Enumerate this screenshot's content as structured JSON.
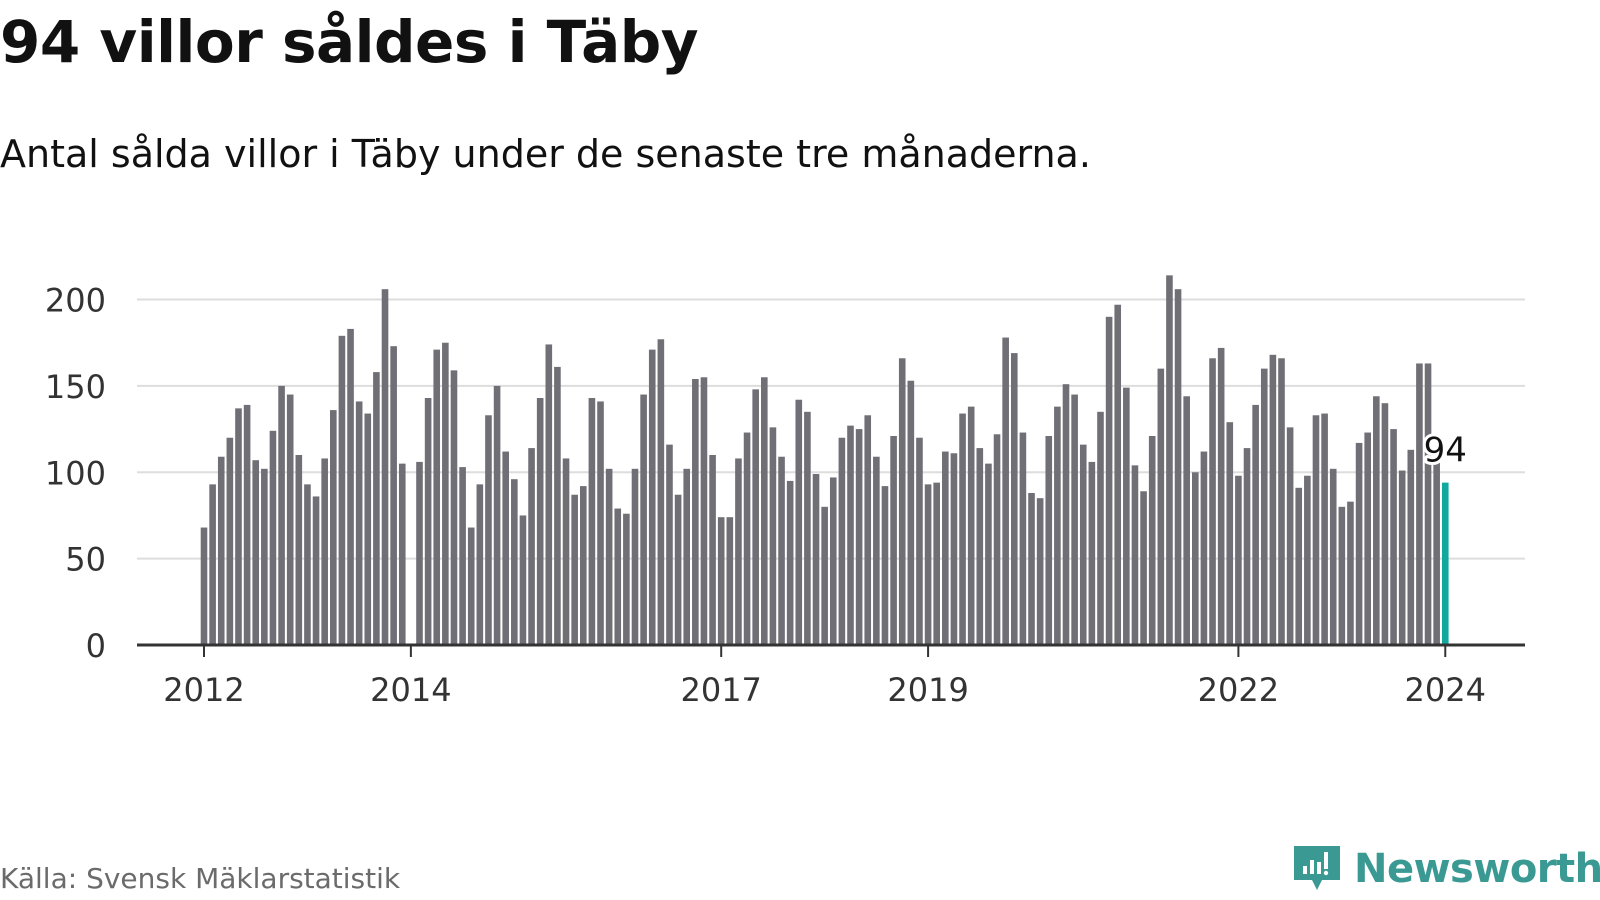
{
  "header": {
    "title": "94 villor såldes i Täby",
    "subtitle": "Antal sålda villor i Täby under de senaste tre månaderna."
  },
  "footer": {
    "source": "Källa: Svensk Mäklarstatistik",
    "brand": "Newsworthy"
  },
  "colors": {
    "bar": "#6f6f75",
    "highlight": "#13a89e",
    "grid": "#dddddd",
    "axis": "#333333",
    "brand": "#3a9a93"
  },
  "chart_data": {
    "type": "bar",
    "title": "94 villor såldes i Täby",
    "xlabel": "",
    "ylabel": "",
    "ylim": [
      0,
      220
    ],
    "yticks": [
      0,
      50,
      100,
      150,
      200
    ],
    "start": "2012-01",
    "categories_note": "Monthly, January 2012 to January 2024",
    "xtick_labels": [
      {
        "label": "2012",
        "index": 0
      },
      {
        "label": "2014",
        "index": 24
      },
      {
        "label": "2017",
        "index": 60
      },
      {
        "label": "2019",
        "index": 84
      },
      {
        "label": "2022",
        "index": 120
      },
      {
        "label": "2024",
        "index": 144
      }
    ],
    "highlight": {
      "index": 144,
      "value": 94,
      "label": "94"
    },
    "values": [
      68,
      93,
      109,
      120,
      137,
      139,
      107,
      102,
      124,
      150,
      145,
      110,
      93,
      86,
      108,
      136,
      179,
      183,
      141,
      134,
      158,
      206,
      173,
      105,
      null,
      106,
      143,
      171,
      175,
      159,
      103,
      68,
      93,
      133,
      150,
      112,
      96,
      75,
      114,
      143,
      174,
      161,
      108,
      87,
      92,
      143,
      141,
      102,
      79,
      76,
      102,
      145,
      171,
      177,
      116,
      87,
      102,
      154,
      155,
      110,
      74,
      74,
      108,
      123,
      148,
      155,
      126,
      109,
      95,
      142,
      135,
      99,
      80,
      97,
      120,
      127,
      125,
      133,
      109,
      92,
      121,
      166,
      153,
      120,
      93,
      94,
      112,
      111,
      134,
      138,
      114,
      105,
      122,
      178,
      169,
      123,
      88,
      85,
      121,
      138,
      151,
      145,
      116,
      106,
      135,
      190,
      197,
      149,
      104,
      89,
      121,
      160,
      214,
      206,
      144,
      100,
      112,
      166,
      172,
      129,
      98,
      114,
      139,
      160,
      168,
      166,
      126,
      91,
      98,
      133,
      134,
      102,
      80,
      83,
      117,
      123,
      144,
      140,
      125,
      101,
      113,
      163,
      163,
      113,
      94
    ]
  }
}
